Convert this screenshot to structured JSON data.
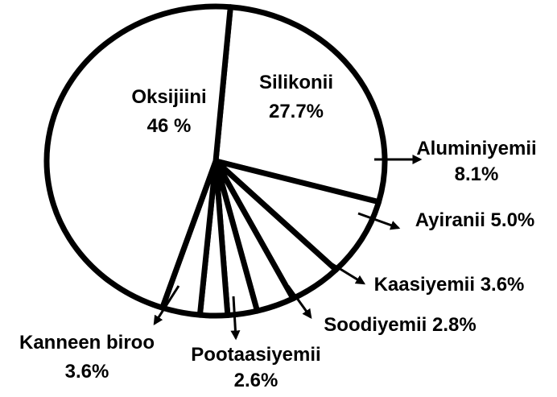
{
  "chart_data": {
    "type": "pie",
    "categories": [
      "Oksijiini",
      "Silikonii",
      "Aluminiyemii",
      "Ayiranii",
      "Kaasiyemii",
      "Soodiyemii",
      "Pootaasiyemii",
      "Kanneen biroo"
    ],
    "values": [
      46,
      27.7,
      8.1,
      5.0,
      3.6,
      2.8,
      2.6,
      3.6
    ],
    "value_labels": [
      "46 %",
      "27.7%",
      "8.1%",
      "5.0%",
      "3.6%",
      "2.8%",
      "2.6%",
      "3.6%"
    ],
    "color": "#ffffff"
  }
}
